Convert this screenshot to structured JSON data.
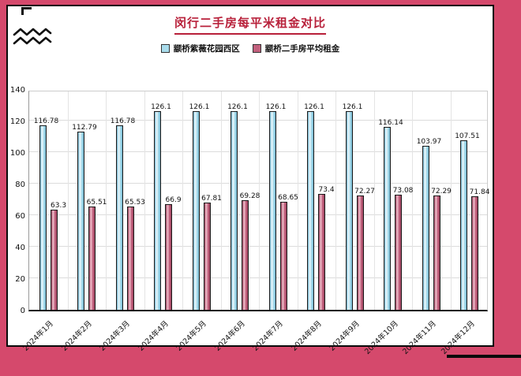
{
  "page": {
    "title": "闵行二手房每平米租金对比",
    "background_color": "#d5496c",
    "title_color": "#b8203a"
  },
  "legend": [
    {
      "label": "颛桥紫薇花园西区",
      "color": "#a9dcec"
    },
    {
      "label": "颛桥二手房平均租金",
      "color": "#c2607d"
    }
  ],
  "chart_data": {
    "type": "bar",
    "title": "闵行二手房每平米租金对比",
    "categories": [
      "2024年1月",
      "2024年2月",
      "2024年3月",
      "2024年4月",
      "2024年5月",
      "2024年6月",
      "2024年7月",
      "2024年8月",
      "2024年9月",
      "2024年10月",
      "2024年11月",
      "2024年12月"
    ],
    "series": [
      {
        "name": "颛桥紫薇花园西区",
        "color": "#a9dcec",
        "values": [
          116.78,
          112.79,
          116.78,
          126.1,
          126.1,
          126.1,
          126.1,
          126.1,
          126.1,
          116.14,
          103.97,
          107.51
        ],
        "labels": [
          "116.78",
          "112.79",
          "116.78",
          "126.1",
          "126.1",
          "126.1",
          "126.1",
          "126.1",
          "126.1",
          "116.14",
          "103.97",
          "107.51"
        ]
      },
      {
        "name": "颛桥二手房平均租金",
        "color": "#c2607d",
        "values": [
          63.3,
          65.51,
          65.53,
          66.9,
          67.81,
          69.28,
          68.65,
          73.4,
          72.27,
          73.08,
          72.29,
          71.84
        ],
        "labels": [
          "63.3",
          "65.51",
          "65.53",
          "66.9",
          "67.81",
          "69.28",
          "68.65",
          "73.4",
          "72.27",
          "73.08",
          "72.29",
          "71.84"
        ]
      }
    ],
    "xlabel": "",
    "ylabel": "",
    "ylim": [
      0,
      140
    ],
    "yticks": [
      0,
      20,
      40,
      60,
      80,
      100,
      120,
      140
    ],
    "grid": true,
    "legend_position": "top"
  }
}
